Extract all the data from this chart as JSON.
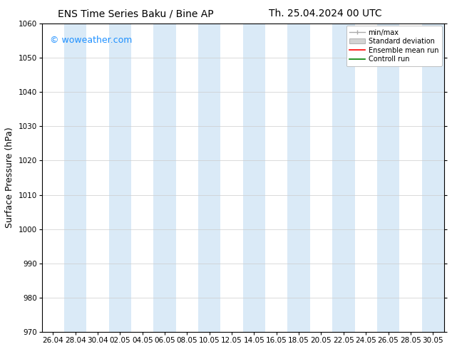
{
  "title_left": "ENS Time Series Baku / Bine AP",
  "title_right": "Th. 25.04.2024 00 UTC",
  "ylabel": "Surface Pressure (hPa)",
  "ylim": [
    970,
    1060
  ],
  "yticks": [
    970,
    980,
    990,
    1000,
    1010,
    1020,
    1030,
    1040,
    1050,
    1060
  ],
  "xtick_labels": [
    "26.04",
    "28.04",
    "30.04",
    "02.05",
    "04.05",
    "06.05",
    "08.05",
    "10.05",
    "12.05",
    "14.05",
    "16.05",
    "18.05",
    "20.05",
    "22.05",
    "24.05",
    "26.05",
    "28.05",
    "30.05"
  ],
  "watermark": "© woweather.com",
  "watermark_color": "#1E90FF",
  "bg_color": "#ffffff",
  "plot_bg_color": "#ffffff",
  "band_color": "#daeaf7",
  "band_positions": [
    1,
    3,
    5,
    7,
    9,
    11,
    13,
    15,
    17
  ],
  "legend_labels": [
    "min/max",
    "Standard deviation",
    "Ensemble mean run",
    "Controll run"
  ],
  "legend_line_colors": [
    "#aaaaaa",
    "#cccccc",
    "#ff0000",
    "#008000"
  ],
  "title_fontsize": 10,
  "axis_label_fontsize": 9,
  "tick_fontsize": 7.5,
  "watermark_fontsize": 9,
  "legend_fontsize": 7
}
